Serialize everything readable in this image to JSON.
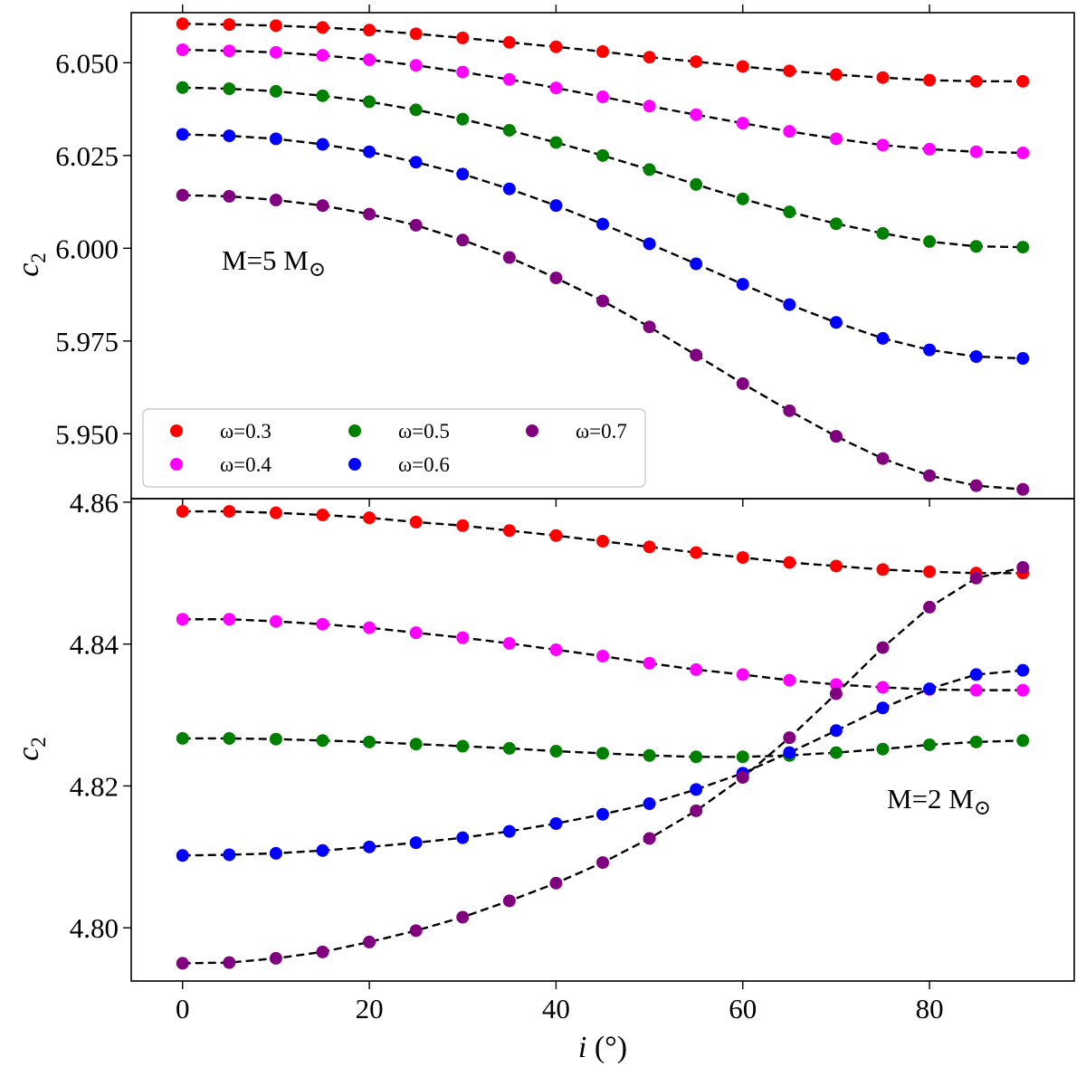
{
  "chart_data": [
    {
      "type": "scatter",
      "panel": "top",
      "ylabel": "c",
      "ylabel_sub": "2",
      "annotation": {
        "text": "M=5 M",
        "symbol": "⊙"
      },
      "xlim": [
        -5.5,
        95.5
      ],
      "ylim": [
        5.9325,
        6.0635
      ],
      "yticks": [
        5.95,
        5.975,
        6.0,
        6.025,
        6.05
      ],
      "ytick_labels": [
        "5.950",
        "5.975",
        "6.000",
        "6.025",
        "6.050"
      ],
      "xticks": [
        0,
        20,
        40,
        60,
        80
      ],
      "grid": false,
      "legend": {
        "position": "lower-left",
        "ncol": 3
      },
      "x": [
        0,
        5,
        10,
        15,
        20,
        25,
        30,
        35,
        40,
        45,
        50,
        55,
        60,
        65,
        70,
        75,
        80,
        85,
        90
      ],
      "series": [
        {
          "name": "ω=0.3",
          "color": "#ff0000",
          "values": [
            6.0605,
            6.0603,
            6.06,
            6.0595,
            6.0588,
            6.0578,
            6.0567,
            6.0555,
            6.0543,
            6.053,
            6.0515,
            6.0503,
            6.049,
            6.0478,
            6.0468,
            6.046,
            6.0453,
            6.045,
            6.045
          ]
        },
        {
          "name": "ω=0.4",
          "color": "#ff00ff",
          "values": [
            6.0535,
            6.0532,
            6.0528,
            6.052,
            6.0508,
            6.0493,
            6.0475,
            6.0455,
            6.0432,
            6.0408,
            6.0383,
            6.036,
            6.0337,
            6.0315,
            6.0295,
            6.0278,
            6.0267,
            6.026,
            6.0257
          ]
        },
        {
          "name": "ω=0.5",
          "color": "#008000",
          "values": [
            6.0433,
            6.043,
            6.0423,
            6.0411,
            6.0395,
            6.0373,
            6.0348,
            6.0318,
            6.0285,
            6.025,
            6.0212,
            6.0172,
            6.0133,
            6.0098,
            6.0066,
            6.004,
            6.0018,
            6.0005,
            6.0003
          ]
        },
        {
          "name": "ω=0.6",
          "color": "#0000ff",
          "values": [
            6.0307,
            6.0303,
            6.0295,
            6.028,
            6.026,
            6.0232,
            6.02,
            6.016,
            6.0115,
            6.0065,
            6.0012,
            5.9958,
            5.9903,
            5.9848,
            5.98,
            5.9757,
            5.9726,
            5.9708,
            5.9703
          ]
        },
        {
          "name": "ω=0.7",
          "color": "#800080",
          "values": [
            6.0143,
            6.014,
            6.013,
            6.0115,
            6.0092,
            6.0062,
            6.0022,
            5.9975,
            5.992,
            5.9858,
            5.9788,
            5.9712,
            5.9635,
            5.9562,
            5.9493,
            5.9433,
            5.9387,
            5.936,
            5.935
          ]
        }
      ]
    },
    {
      "type": "scatter",
      "panel": "bottom",
      "xlabel": "i",
      "xlabel_suffix": " (°)",
      "ylabel": "c",
      "ylabel_sub": "2",
      "annotation": {
        "text": "M=2 M",
        "symbol": "⊙"
      },
      "xlim": [
        -5.5,
        95.5
      ],
      "ylim": [
        4.7925,
        4.8605
      ],
      "yticks": [
        4.8,
        4.82,
        4.84,
        4.86
      ],
      "ytick_labels": [
        "4.80",
        "4.82",
        "4.84",
        "4.86"
      ],
      "xticks": [
        0,
        20,
        40,
        60,
        80
      ],
      "xtick_labels": [
        "0",
        "20",
        "40",
        "60",
        "80"
      ],
      "grid": false,
      "x": [
        0,
        5,
        10,
        15,
        20,
        25,
        30,
        35,
        40,
        45,
        50,
        55,
        60,
        65,
        70,
        75,
        80,
        85,
        90
      ],
      "series": [
        {
          "name": "ω=0.3",
          "color": "#ff0000",
          "values": [
            4.8587,
            4.8587,
            4.8585,
            4.8582,
            4.8578,
            4.8572,
            4.8567,
            4.856,
            4.8553,
            4.8545,
            4.8537,
            4.8529,
            4.8522,
            4.8515,
            4.851,
            4.8505,
            4.8502,
            4.85,
            4.85
          ]
        },
        {
          "name": "ω=0.4",
          "color": "#ff00ff",
          "values": [
            4.8435,
            4.8435,
            4.8432,
            4.8428,
            4.8423,
            4.8416,
            4.8409,
            4.8401,
            4.8392,
            4.8383,
            4.8373,
            4.8364,
            4.8357,
            4.8349,
            4.8343,
            4.8339,
            4.8336,
            4.8335,
            4.8335
          ]
        },
        {
          "name": "ω=0.5",
          "color": "#008000",
          "values": [
            4.8267,
            4.8267,
            4.8266,
            4.8264,
            4.8262,
            4.8259,
            4.8256,
            4.8253,
            4.8249,
            4.8246,
            4.8243,
            4.8241,
            4.8241,
            4.8243,
            4.8247,
            4.8252,
            4.8258,
            4.8262,
            4.8264
          ]
        },
        {
          "name": "ω=0.6",
          "color": "#0000ff",
          "values": [
            4.8102,
            4.8103,
            4.8105,
            4.8109,
            4.8114,
            4.812,
            4.8127,
            4.8136,
            4.8147,
            4.816,
            4.8175,
            4.8195,
            4.8218,
            4.8247,
            4.8278,
            4.831,
            4.8337,
            4.8357,
            4.8363
          ]
        },
        {
          "name": "ω=0.7",
          "color": "#800080",
          "values": [
            4.795,
            4.7951,
            4.7957,
            4.7966,
            4.798,
            4.7996,
            4.8015,
            4.8038,
            4.8063,
            4.8092,
            4.8126,
            4.8165,
            4.8212,
            4.8268,
            4.833,
            4.8395,
            4.8452,
            4.8493,
            4.8508
          ]
        }
      ]
    }
  ]
}
